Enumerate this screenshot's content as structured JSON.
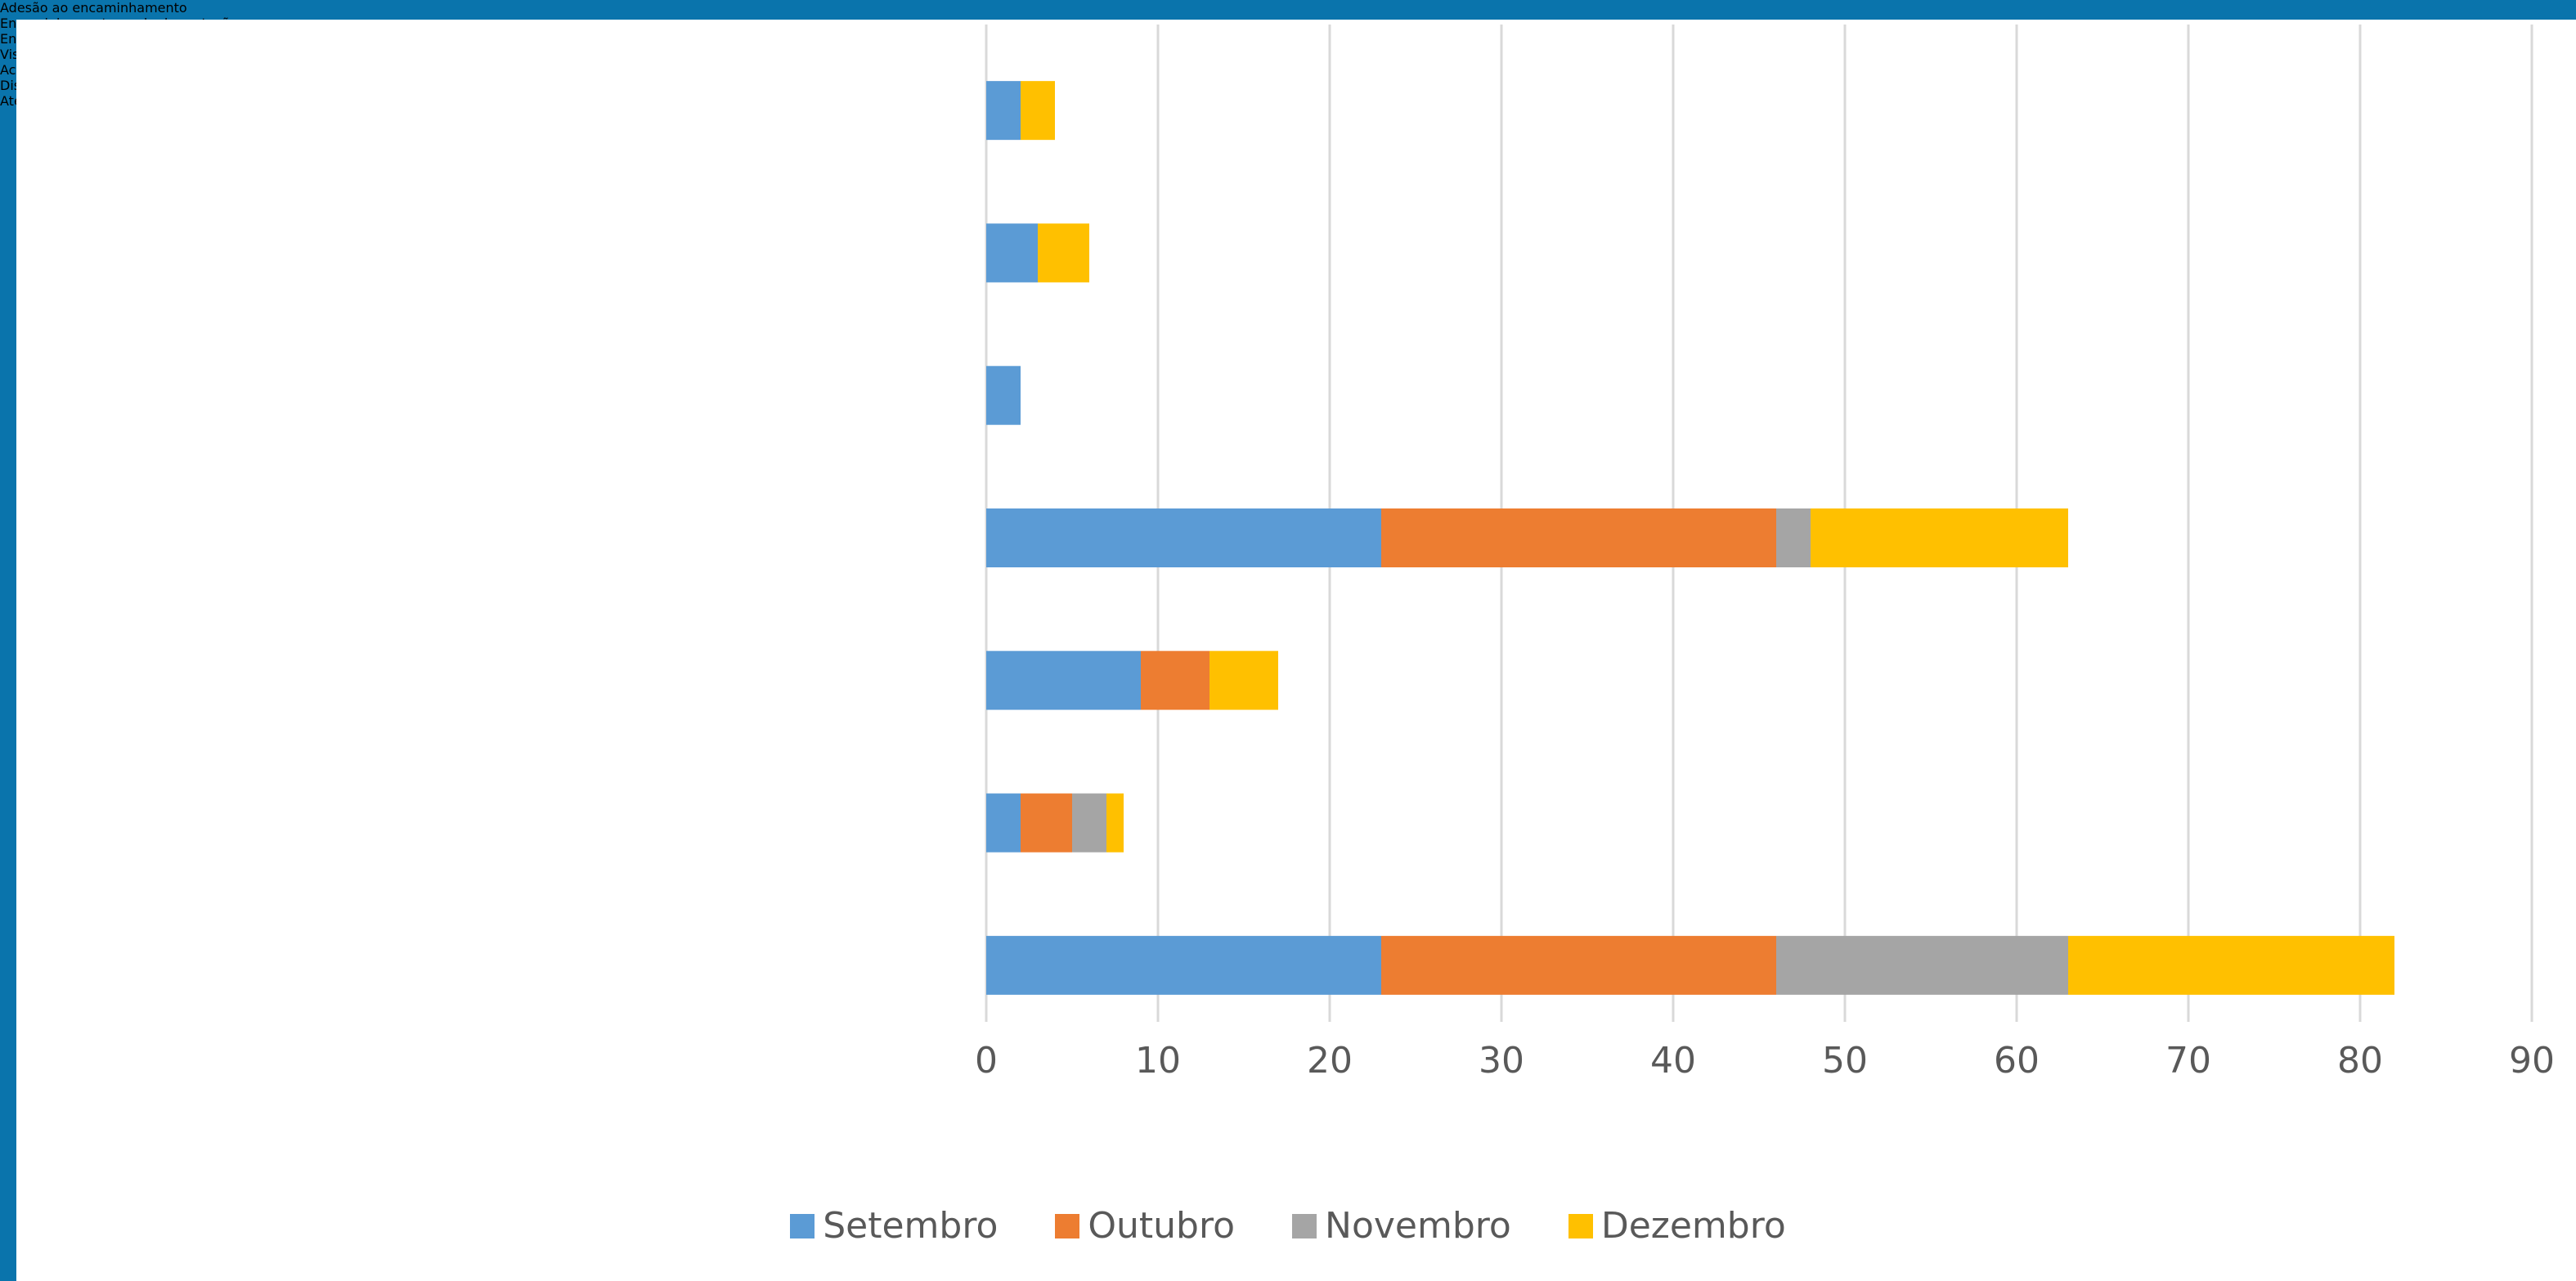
{
  "chart_data": {
    "type": "stacked_bar_horizontal",
    "categories": [
      "Adesão ao encaminhamento",
      "Encaminhamentos rede de proteção",
      "Encaminhamento\npsicológico",
      "Visita domiciliar do serviço social",
      "Acompanhamento do PAF",
      "Discussão pela equipe multidisciplinar",
      "Atendimento e orientações\nsociais."
    ],
    "series": [
      {
        "name": "Setembro",
        "color": "#5B9BD5",
        "values": [
          2,
          3,
          2,
          23,
          9,
          2,
          23
        ]
      },
      {
        "name": "Outubro",
        "color": "#ED7D31",
        "values": [
          0,
          0,
          0,
          23,
          4,
          3,
          23
        ]
      },
      {
        "name": "Novembro",
        "color": "#A5A5A5",
        "values": [
          0,
          0,
          0,
          2,
          0,
          2,
          17
        ]
      },
      {
        "name": "Dezembro",
        "color": "#FFC000",
        "values": [
          2,
          3,
          0,
          15,
          4,
          1,
          19
        ]
      }
    ],
    "xlim": [
      0,
      90
    ],
    "xticks": [
      0,
      10,
      20,
      30,
      40,
      50,
      60,
      70,
      80,
      90
    ],
    "grid": true,
    "legend": "bottom"
  }
}
